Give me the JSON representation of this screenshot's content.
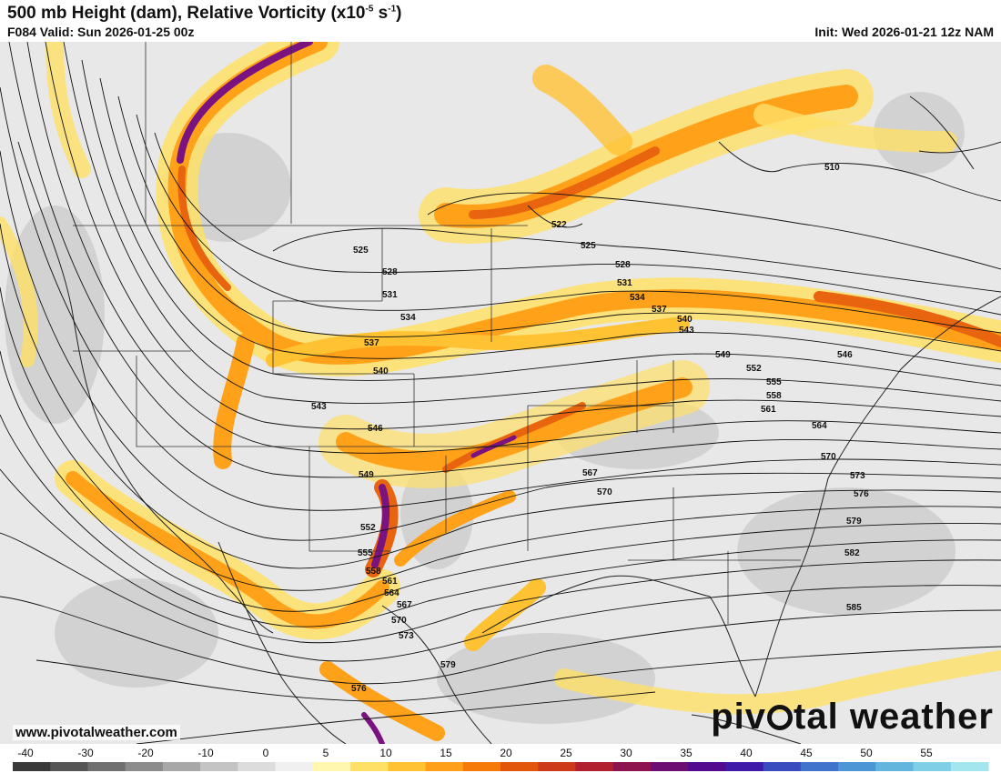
{
  "header": {
    "title": "500 mb Height (dam), Relative Vorticity (x10",
    "title_sup": "-5",
    "title_unit": " s",
    "title_sup2": "-1",
    "title_end": ")",
    "valid": "F084 Valid: Sun 2026-01-25 00z",
    "init": "Init: Wed 2026-01-21 12z NAM"
  },
  "footer": {
    "website": "www.pivotalweather.com",
    "brand_left": "piv",
    "brand_right": "tal weather"
  },
  "colorbar": {
    "ticks": [
      "-40",
      "-30",
      "-20",
      "-10",
      "0",
      "5",
      "10",
      "15",
      "20",
      "25",
      "30",
      "35",
      "40",
      "45",
      "50",
      "55"
    ],
    "colors": [
      "#3a3a3a",
      "#555555",
      "#707070",
      "#8c8c8c",
      "#a8a8a8",
      "#c4c4c4",
      "#dcdcdc",
      "#f0f0f0",
      "#fff7b0",
      "#ffe066",
      "#ffc233",
      "#ff9f1a",
      "#f57a0a",
      "#e2560c",
      "#cc3a1a",
      "#b0202e",
      "#8e1450",
      "#6d0f72",
      "#520b8e",
      "#3f1aa8",
      "#3a4bc0",
      "#3f73cc",
      "#4d96d6",
      "#64b5de",
      "#7fd0e6",
      "#a3e6ee"
    ]
  },
  "height_labels": [
    "510",
    "522",
    "525",
    "525",
    "528",
    "528",
    "531",
    "531",
    "534",
    "534",
    "537",
    "537",
    "540",
    "540",
    "543",
    "543",
    "546",
    "546",
    "549",
    "549",
    "552",
    "552",
    "555",
    "555",
    "558",
    "558",
    "561",
    "561",
    "564",
    "564",
    "567",
    "567",
    "570",
    "570",
    "570",
    "573",
    "573",
    "576",
    "576",
    "579",
    "579",
    "582",
    "585"
  ],
  "colors": {
    "vort_low": "#ffe066",
    "vort_mid": "#ffa21a",
    "vort_high": "#e8640e",
    "vort_max": "#7a1380",
    "negative": "#c4c4c4",
    "background": "#e9e9e9",
    "contour": "#111111"
  }
}
